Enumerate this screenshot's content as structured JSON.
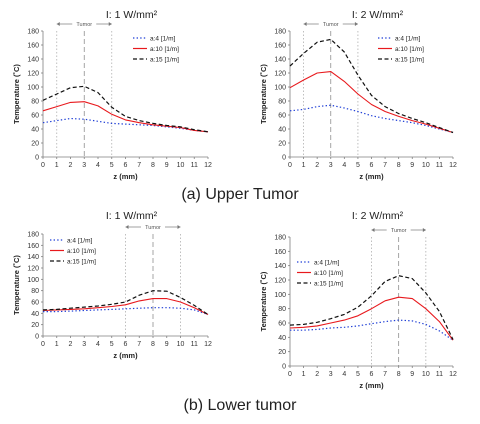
{
  "captions": {
    "upper": "(a) Upper Tumor",
    "lower": "(b) Lower tumor"
  },
  "colors": {
    "a4": "#1f3fd6",
    "a10": "#e8191d",
    "a15": "#111111",
    "axis": "#7f7f7f",
    "grid": "#b0b0b0"
  },
  "chart_data": [
    {
      "id": "upper-1w",
      "type": "line",
      "title": "I: 1 W/mm²",
      "xlabel": "z (mm)",
      "ylabel": "Temperature (˚C)",
      "xlim": [
        0,
        12
      ],
      "ylim": [
        0,
        180
      ],
      "xticks": [
        "0",
        "1",
        "2",
        "3",
        "4",
        "5",
        "6",
        "7",
        "8",
        "9",
        "10",
        "11",
        "12"
      ],
      "yticks": [
        "0",
        "20",
        "40",
        "60",
        "80",
        "100",
        "120",
        "140",
        "160",
        "180"
      ],
      "tumor": {
        "label": "Tumor",
        "start": 1,
        "end": 5,
        "center": 3
      },
      "legend": "top-right",
      "x": [
        0,
        1,
        2,
        3,
        4,
        5,
        6,
        7,
        8,
        9,
        10,
        11,
        12
      ],
      "series": [
        {
          "name": "a:4 [1/m]",
          "style": "dotted",
          "color": "#1f3fd6",
          "values": [
            49,
            52,
            55,
            54,
            51,
            48,
            47,
            46,
            45,
            43,
            41,
            38,
            36
          ]
        },
        {
          "name": "a:10 [1/m]",
          "style": "solid",
          "color": "#e8191d",
          "values": [
            66,
            72,
            78,
            79,
            73,
            61,
            53,
            49,
            46,
            44,
            42,
            38,
            36
          ]
        },
        {
          "name": "a:15 [1/m]",
          "style": "dashed",
          "color": "#111111",
          "values": [
            81,
            90,
            99,
            101,
            92,
            71,
            58,
            52,
            48,
            45,
            43,
            39,
            36
          ]
        }
      ]
    },
    {
      "id": "upper-2w",
      "type": "line",
      "title": "I: 2 W/mm²",
      "xlabel": "z (mm)",
      "ylabel": "Temperature (˚C)",
      "xlim": [
        0,
        12
      ],
      "ylim": [
        0,
        180
      ],
      "xticks": [
        "0",
        "1",
        "2",
        "3",
        "4",
        "5",
        "6",
        "7",
        "8",
        "9",
        "10",
        "11",
        "12"
      ],
      "yticks": [
        "0",
        "20",
        "40",
        "60",
        "80",
        "100",
        "120",
        "140",
        "160",
        "180"
      ],
      "tumor": {
        "label": "Tumor",
        "start": 1,
        "end": 5,
        "center": 3
      },
      "legend": "top-right",
      "x": [
        0,
        1,
        2,
        3,
        4,
        5,
        6,
        7,
        8,
        9,
        10,
        11,
        12
      ],
      "series": [
        {
          "name": "a:4 [1/m]",
          "style": "dotted",
          "color": "#1f3fd6",
          "values": [
            66,
            68,
            72,
            74,
            70,
            65,
            59,
            55,
            52,
            49,
            45,
            40,
            35
          ]
        },
        {
          "name": "a:10 [1/m]",
          "style": "solid",
          "color": "#e8191d",
          "values": [
            99,
            110,
            120,
            122,
            108,
            90,
            75,
            65,
            58,
            52,
            47,
            41,
            35
          ]
        },
        {
          "name": "a:15 [1/m]",
          "style": "dashed",
          "color": "#111111",
          "values": [
            130,
            148,
            164,
            168,
            150,
            117,
            88,
            72,
            62,
            55,
            49,
            42,
            35
          ]
        }
      ]
    },
    {
      "id": "lower-1w",
      "type": "line",
      "title": "I: 1 W/mm²",
      "xlabel": "z (mm)",
      "ylabel": "Temperature (˚C)",
      "xlim": [
        0,
        12
      ],
      "ylim": [
        0,
        180
      ],
      "xticks": [
        "0",
        "1",
        "2",
        "3",
        "4",
        "5",
        "6",
        "7",
        "8",
        "9",
        "10",
        "11",
        "12"
      ],
      "yticks": [
        "0",
        "20",
        "40",
        "60",
        "80",
        "100",
        "120",
        "140",
        "160",
        "180"
      ],
      "tumor": {
        "label": "Tumor",
        "start": 6,
        "end": 10,
        "center": 8
      },
      "legend": "top-left",
      "x": [
        0,
        1,
        2,
        3,
        4,
        5,
        6,
        7,
        8,
        9,
        10,
        11,
        12
      ],
      "series": [
        {
          "name": "a:4 [1/m]",
          "style": "dotted",
          "color": "#1f3fd6",
          "values": [
            43,
            43,
            44,
            45,
            46,
            47,
            48,
            49,
            50,
            50,
            49,
            46,
            38
          ]
        },
        {
          "name": "a:10 [1/m]",
          "style": "solid",
          "color": "#e8191d",
          "values": [
            45,
            46,
            47,
            48,
            50,
            52,
            55,
            62,
            66,
            66,
            60,
            50,
            38
          ]
        },
        {
          "name": "a:15 [1/m]",
          "style": "dashed",
          "color": "#111111",
          "values": [
            46,
            47,
            49,
            51,
            53,
            56,
            60,
            72,
            80,
            79,
            68,
            54,
            38
          ]
        }
      ]
    },
    {
      "id": "lower-2w",
      "type": "line",
      "title": "I: 2 W/mm²",
      "xlabel": "z (mm)",
      "ylabel": "Temperature (˚C)",
      "xlim": [
        0,
        12
      ],
      "ylim": [
        0,
        180
      ],
      "xticks": [
        "0",
        "1",
        "2",
        "3",
        "4",
        "5",
        "6",
        "7",
        "8",
        "9",
        "10",
        "11",
        "12"
      ],
      "yticks": [
        "0",
        "20",
        "40",
        "60",
        "80",
        "100",
        "120",
        "140",
        "160",
        "180"
      ],
      "tumor": {
        "label": "Tumor",
        "start": 6,
        "end": 10,
        "center": 8
      },
      "legend": "top-left",
      "x": [
        0,
        1,
        2,
        3,
        4,
        5,
        6,
        7,
        8,
        9,
        10,
        11,
        12
      ],
      "series": [
        {
          "name": "a:4 [1/m]",
          "style": "dotted",
          "color": "#1f3fd6",
          "values": [
            50,
            50,
            51,
            53,
            54,
            56,
            59,
            62,
            64,
            63,
            58,
            49,
            36
          ]
        },
        {
          "name": "a:10 [1/m]",
          "style": "solid",
          "color": "#e8191d",
          "values": [
            53,
            54,
            56,
            60,
            64,
            70,
            80,
            91,
            96,
            94,
            80,
            62,
            36
          ]
        },
        {
          "name": "a:15 [1/m]",
          "style": "dashed",
          "color": "#111111",
          "values": [
            57,
            58,
            61,
            66,
            72,
            82,
            98,
            118,
            126,
            122,
            102,
            76,
            37
          ]
        }
      ]
    }
  ]
}
